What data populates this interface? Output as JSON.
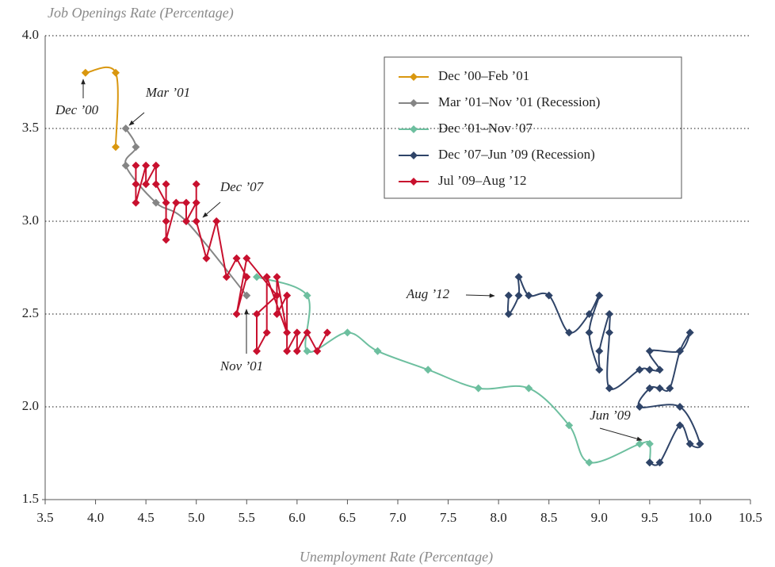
{
  "chart_data": {
    "type": "line",
    "y_label": "Job Openings Rate (Percentage)",
    "x_label": "Unemployment Rate (Percentage)",
    "xlim": [
      3.5,
      10.5
    ],
    "ylim": [
      1.5,
      4.0
    ],
    "xticks": [
      3.5,
      {
        "value": 4,
        "label": "4.0"
      },
      4.5,
      {
        "value": 5,
        "label": "5.0"
      },
      5.5,
      {
        "value": 6,
        "label": "6.0"
      },
      6.5,
      {
        "value": 7,
        "label": "7.0"
      },
      7.5,
      {
        "value": 8,
        "label": "8.0"
      },
      8.5,
      {
        "value": 9,
        "label": "9.0"
      },
      9.5,
      {
        "value": 10,
        "label": "10.0"
      },
      10.5
    ],
    "yticks": [
      1.5,
      {
        "value": 2,
        "label": "2.0"
      },
      2.5,
      {
        "value": 3,
        "label": "3.0"
      },
      3.5,
      {
        "value": 4,
        "label": "4.0"
      }
    ],
    "grid": true,
    "legend": "upper right",
    "series": [
      {
        "name": "Dec ’00–Feb ’01",
        "color": "#d9970f",
        "smooth": true,
        "x": [
          3.9,
          4.2,
          4.2
        ],
        "values": [
          3.8,
          3.8,
          3.4
        ]
      },
      {
        "name": "Mar ’01–Nov ’01 (Recession)",
        "color": "#858585",
        "smooth": true,
        "x": [
          4.3,
          4.4,
          4.3,
          4.6,
          4.9,
          5.5
        ],
        "values": [
          3.5,
          3.4,
          3.3,
          3.1,
          3.0,
          2.6
        ]
      },
      {
        "name": "Dec ’01–Nov ’07",
        "color": "#6dbf9f",
        "smooth": true,
        "x": [
          5.6,
          6.1,
          6.1,
          6.5,
          6.8,
          7.3,
          7.8,
          8.3,
          8.7,
          8.9,
          9.4,
          9.5,
          9.5
        ],
        "values": [
          2.7,
          2.6,
          2.3,
          2.4,
          2.3,
          2.2,
          2.1,
          2.1,
          1.9,
          1.7,
          1.8,
          1.8,
          1.7
        ]
      },
      {
        "name": "Dec ’07–Jun ’09 (Recession)",
        "color": "#2f4468",
        "smooth": true,
        "x": [
          9.5,
          9.6,
          9.8,
          9.9,
          10.0,
          9.8,
          9.4,
          9.5,
          9.6,
          9.7,
          9.8,
          9.9,
          9.8,
          9.5,
          9.6,
          9.5,
          9.4,
          9.1,
          9.1,
          9.1,
          9.0,
          9.0,
          8.9,
          9.0,
          8.9,
          8.7,
          8.5,
          8.3,
          8.2,
          8.2,
          8.1,
          8.1
        ],
        "values": [
          1.7,
          1.7,
          1.9,
          1.8,
          1.8,
          2.0,
          2.0,
          2.1,
          2.1,
          2.1,
          2.3,
          2.4,
          2.3,
          2.3,
          2.2,
          2.2,
          2.2,
          2.1,
          2.4,
          2.5,
          2.3,
          2.2,
          2.4,
          2.6,
          2.5,
          2.4,
          2.6,
          2.6,
          2.7,
          2.6,
          2.5,
          2.6
        ]
      },
      {
        "name": "Jul ’09–Aug ’12",
        "color": "#c8102e",
        "smooth": false,
        "x": [
          6.3,
          6.2,
          6.1,
          6.0,
          6.0,
          5.9,
          5.9,
          5.8,
          5.8,
          5.9,
          5.7,
          5.7,
          5.6,
          5.6,
          5.8,
          5.5,
          5.4,
          5.5,
          5.4,
          5.3,
          5.2,
          5.1,
          5.0,
          5.0,
          5.0,
          4.9,
          4.9,
          4.8,
          4.7,
          4.7,
          4.7,
          4.7,
          4.6,
          4.6,
          4.5,
          4.5,
          4.4,
          4.4,
          4.4
        ],
        "values": [
          2.4,
          2.3,
          2.4,
          2.3,
          2.4,
          2.3,
          2.6,
          2.5,
          2.7,
          2.4,
          2.7,
          2.4,
          2.3,
          2.5,
          2.6,
          2.8,
          2.5,
          2.7,
          2.8,
          2.7,
          3.0,
          2.8,
          3.0,
          3.2,
          3.1,
          3.0,
          3.1,
          3.1,
          2.9,
          3.0,
          3.2,
          3.1,
          3.2,
          3.3,
          3.2,
          3.3,
          3.1,
          3.2,
          3.3
        ]
      }
    ],
    "annotations": [
      "Dec ’00",
      "Mar ’01",
      "Dec ’07",
      "Nov ’01",
      "Aug ’12",
      "Jun ’09"
    ]
  }
}
